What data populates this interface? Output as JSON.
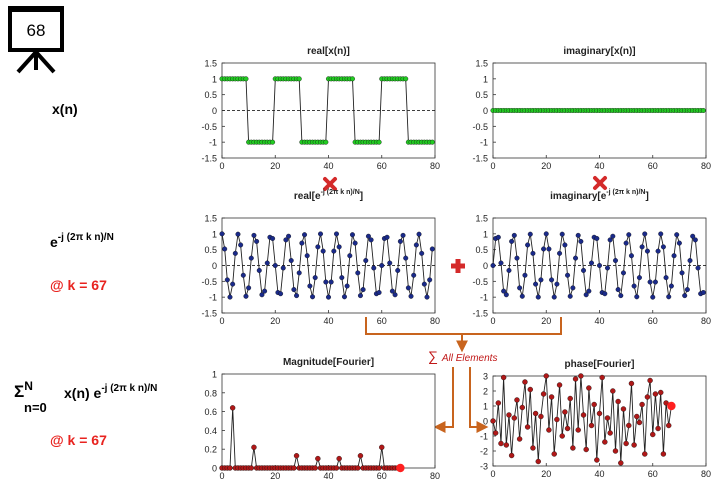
{
  "slide_number": "68",
  "labels": {
    "xn": "x(n)",
    "kernel_base": "e",
    "kernel_exp": "-j (2π k n)/N",
    "at_k_1": "@ k = 67",
    "sum_sigma": "Σ",
    "sum_upper": "N",
    "sum_lower": "n=0",
    "sum_body": "x(n) e",
    "sum_exp": "-j (2π k n)/N",
    "at_k_2": "@ k = 67",
    "sum_note": "All Elements"
  },
  "colors": {
    "green": "#22cc22",
    "navy": "#1a2a8a",
    "darkred": "#b01818",
    "red": "#ff2020",
    "arrow": "#c8641e",
    "op_red": "#d42a2a"
  },
  "chart_data": [
    {
      "id": "realx",
      "type": "line",
      "title": "real[x(n)]",
      "xlim": [
        0,
        80
      ],
      "ylim": [
        -1.5,
        1.5
      ],
      "xticks": [
        0,
        20,
        40,
        60,
        80
      ],
      "yticks": [
        1.5,
        1,
        0.5,
        0,
        -0.5,
        -1,
        -1.5
      ],
      "x": [
        0,
        1,
        2,
        3,
        4,
        5,
        6,
        7,
        8,
        9,
        10,
        11,
        12,
        13,
        14,
        15,
        16,
        17,
        18,
        19,
        20,
        21,
        22,
        23,
        24,
        25,
        26,
        27,
        28,
        29,
        30,
        31,
        32,
        33,
        34,
        35,
        36,
        37,
        38,
        39,
        40,
        41,
        42,
        43,
        44,
        45,
        46,
        47,
        48,
        49,
        50,
        51,
        52,
        53,
        54,
        55,
        56,
        57,
        58,
        59,
        60,
        61,
        62,
        63,
        64,
        65,
        66,
        67,
        68,
        69,
        70,
        71,
        72,
        73,
        74,
        75,
        76,
        77,
        78,
        79
      ],
      "y": [
        1,
        1,
        1,
        1,
        1,
        1,
        1,
        1,
        1,
        1,
        -1,
        -1,
        -1,
        -1,
        -1,
        -1,
        -1,
        -1,
        -1,
        -1,
        1,
        1,
        1,
        1,
        1,
        1,
        1,
        1,
        1,
        1,
        -1,
        -1,
        -1,
        -1,
        -1,
        -1,
        -1,
        -1,
        -1,
        -1,
        1,
        1,
        1,
        1,
        1,
        1,
        1,
        1,
        1,
        1,
        -1,
        -1,
        -1,
        -1,
        -1,
        -1,
        -1,
        -1,
        -1,
        -1,
        1,
        1,
        1,
        1,
        1,
        1,
        1,
        1,
        1,
        1,
        -1,
        -1,
        -1,
        -1,
        -1,
        -1,
        -1,
        -1,
        -1,
        -1
      ]
    },
    {
      "id": "imagx",
      "type": "line",
      "title": "imaginary[x(n)]",
      "xlim": [
        0,
        80
      ],
      "ylim": [
        -1.5,
        1.5
      ],
      "xticks": [
        0,
        20,
        40,
        60,
        80
      ],
      "yticks": [
        1.5,
        1,
        0.5,
        0,
        -0.5,
        -1,
        -1.5
      ],
      "x": [
        0,
        1,
        2,
        3,
        4,
        5,
        6,
        7,
        8,
        9,
        10,
        11,
        12,
        13,
        14,
        15,
        16,
        17,
        18,
        19,
        20,
        21,
        22,
        23,
        24,
        25,
        26,
        27,
        28,
        29,
        30,
        31,
        32,
        33,
        34,
        35,
        36,
        37,
        38,
        39,
        40,
        41,
        42,
        43,
        44,
        45,
        46,
        47,
        48,
        49,
        50,
        51,
        52,
        53,
        54,
        55,
        56,
        57,
        58,
        59,
        60,
        61,
        62,
        63,
        64,
        65,
        66,
        67,
        68,
        69,
        70,
        71,
        72,
        73,
        74,
        75,
        76,
        77,
        78,
        79
      ],
      "y": [
        0,
        0,
        0,
        0,
        0,
        0,
        0,
        0,
        0,
        0,
        0,
        0,
        0,
        0,
        0,
        0,
        0,
        0,
        0,
        0,
        0,
        0,
        0,
        0,
        0,
        0,
        0,
        0,
        0,
        0,
        0,
        0,
        0,
        0,
        0,
        0,
        0,
        0,
        0,
        0,
        0,
        0,
        0,
        0,
        0,
        0,
        0,
        0,
        0,
        0,
        0,
        0,
        0,
        0,
        0,
        0,
        0,
        0,
        0,
        0,
        0,
        0,
        0,
        0,
        0,
        0,
        0,
        0,
        0,
        0,
        0,
        0,
        0,
        0,
        0,
        0,
        0,
        0,
        0,
        0
      ]
    },
    {
      "id": "realk",
      "type": "line",
      "title": "real[e",
      "title_sup": "-j (2π k n)/N",
      "title_end": "]",
      "xlim": [
        0,
        80
      ],
      "ylim": [
        -1.5,
        1.5
      ],
      "xticks": [
        0,
        20,
        40,
        60,
        80
      ],
      "yticks": [
        1.5,
        1,
        0.5,
        0,
        -0.5,
        -1,
        -1.5
      ],
      "k": 67,
      "N": 80,
      "part": "real"
    },
    {
      "id": "imagk",
      "type": "line",
      "title": "imaginary[e",
      "title_sup": "-j (2π k n)/N",
      "title_end": "]",
      "xlim": [
        0,
        80
      ],
      "ylim": [
        -1.5,
        1.5
      ],
      "xticks": [
        0,
        20,
        40,
        60,
        80
      ],
      "yticks": [
        1.5,
        1,
        0.5,
        0,
        -0.5,
        -1,
        -1.5
      ],
      "k": 67,
      "N": 80,
      "part": "imag"
    },
    {
      "id": "mag",
      "type": "line",
      "title": "Magnitude[Fourier]",
      "xlim": [
        0,
        80
      ],
      "ylim": [
        0,
        1
      ],
      "xticks": [
        0,
        20,
        40,
        60,
        80
      ],
      "yticks": [
        1,
        0.8,
        0.6,
        0.4,
        0.2,
        0
      ],
      "x": [
        0,
        1,
        2,
        3,
        4,
        5,
        6,
        7,
        8,
        9,
        10,
        11,
        12,
        13,
        14,
        15,
        16,
        17,
        18,
        19,
        20,
        21,
        22,
        23,
        24,
        25,
        26,
        27,
        28,
        29,
        30,
        31,
        32,
        33,
        34,
        35,
        36,
        37,
        38,
        39,
        40,
        41,
        42,
        43,
        44,
        45,
        46,
        47,
        48,
        49,
        50,
        51,
        52,
        53,
        54,
        55,
        56,
        57,
        58,
        59,
        60,
        61,
        62,
        63,
        64,
        65,
        66,
        67
      ],
      "y": [
        0,
        0,
        0,
        0,
        0.64,
        0,
        0,
        0,
        0,
        0,
        0,
        0,
        0.22,
        0,
        0,
        0,
        0,
        0,
        0,
        0,
        0,
        0,
        0,
        0,
        0,
        0,
        0,
        0,
        0.13,
        0,
        0,
        0,
        0,
        0,
        0,
        0,
        0.1,
        0,
        0,
        0,
        0,
        0,
        0,
        0,
        0.1,
        0,
        0,
        0,
        0,
        0,
        0,
        0,
        0.13,
        0,
        0,
        0,
        0,
        0,
        0,
        0,
        0.22,
        0,
        0,
        0,
        0,
        0,
        0,
        0
      ],
      "highlight_x": 67,
      "highlight_y": 0
    },
    {
      "id": "phase",
      "type": "line",
      "title": "phase[Fourier]",
      "xlim": [
        0,
        80
      ],
      "ylim": [
        -3,
        3
      ],
      "xticks": [
        0,
        20,
        40,
        60,
        80
      ],
      "yticks": [
        3,
        2,
        1,
        0,
        -1,
        -2,
        -3
      ],
      "x": [
        0,
        1,
        2,
        3,
        4,
        5,
        6,
        7,
        8,
        9,
        10,
        11,
        12,
        13,
        14,
        15,
        16,
        17,
        18,
        19,
        20,
        21,
        22,
        23,
        24,
        25,
        26,
        27,
        28,
        29,
        30,
        31,
        32,
        33,
        34,
        35,
        36,
        37,
        38,
        39,
        40,
        41,
        42,
        43,
        44,
        45,
        46,
        47,
        48,
        49,
        50,
        51,
        52,
        53,
        54,
        55,
        56,
        57,
        58,
        59,
        60,
        61,
        62,
        63,
        64,
        65,
        66,
        67
      ],
      "y": [
        0.0,
        -0.8,
        1.2,
        -1.5,
        2.9,
        -1.6,
        0.4,
        -2.3,
        0.2,
        1.4,
        -1.2,
        0.9,
        2.6,
        -0.4,
        2.1,
        -1.8,
        0.5,
        -2.7,
        0.3,
        1.8,
        3.0,
        -0.6,
        1.6,
        -2.2,
        0.1,
        2.4,
        -1.0,
        0.6,
        -0.5,
        1.5,
        -1.8,
        2.8,
        -0.6,
        3.0,
        0.4,
        -1.9,
        2.2,
        -0.3,
        1.1,
        -2.6,
        0.5,
        2.9,
        -1.4,
        0.2,
        -0.8,
        2.0,
        -2.0,
        1.3,
        -2.8,
        0.8,
        -1.5,
        -0.3,
        2.5,
        -1.6,
        0.3,
        -0.1,
        1.1,
        -2.2,
        1.6,
        2.7,
        -0.9,
        1.8,
        -0.5,
        1.9,
        -2.2,
        1.2,
        -0.3,
        1.0
      ],
      "highlight_x": 67,
      "highlight_y": 1.0
    }
  ]
}
